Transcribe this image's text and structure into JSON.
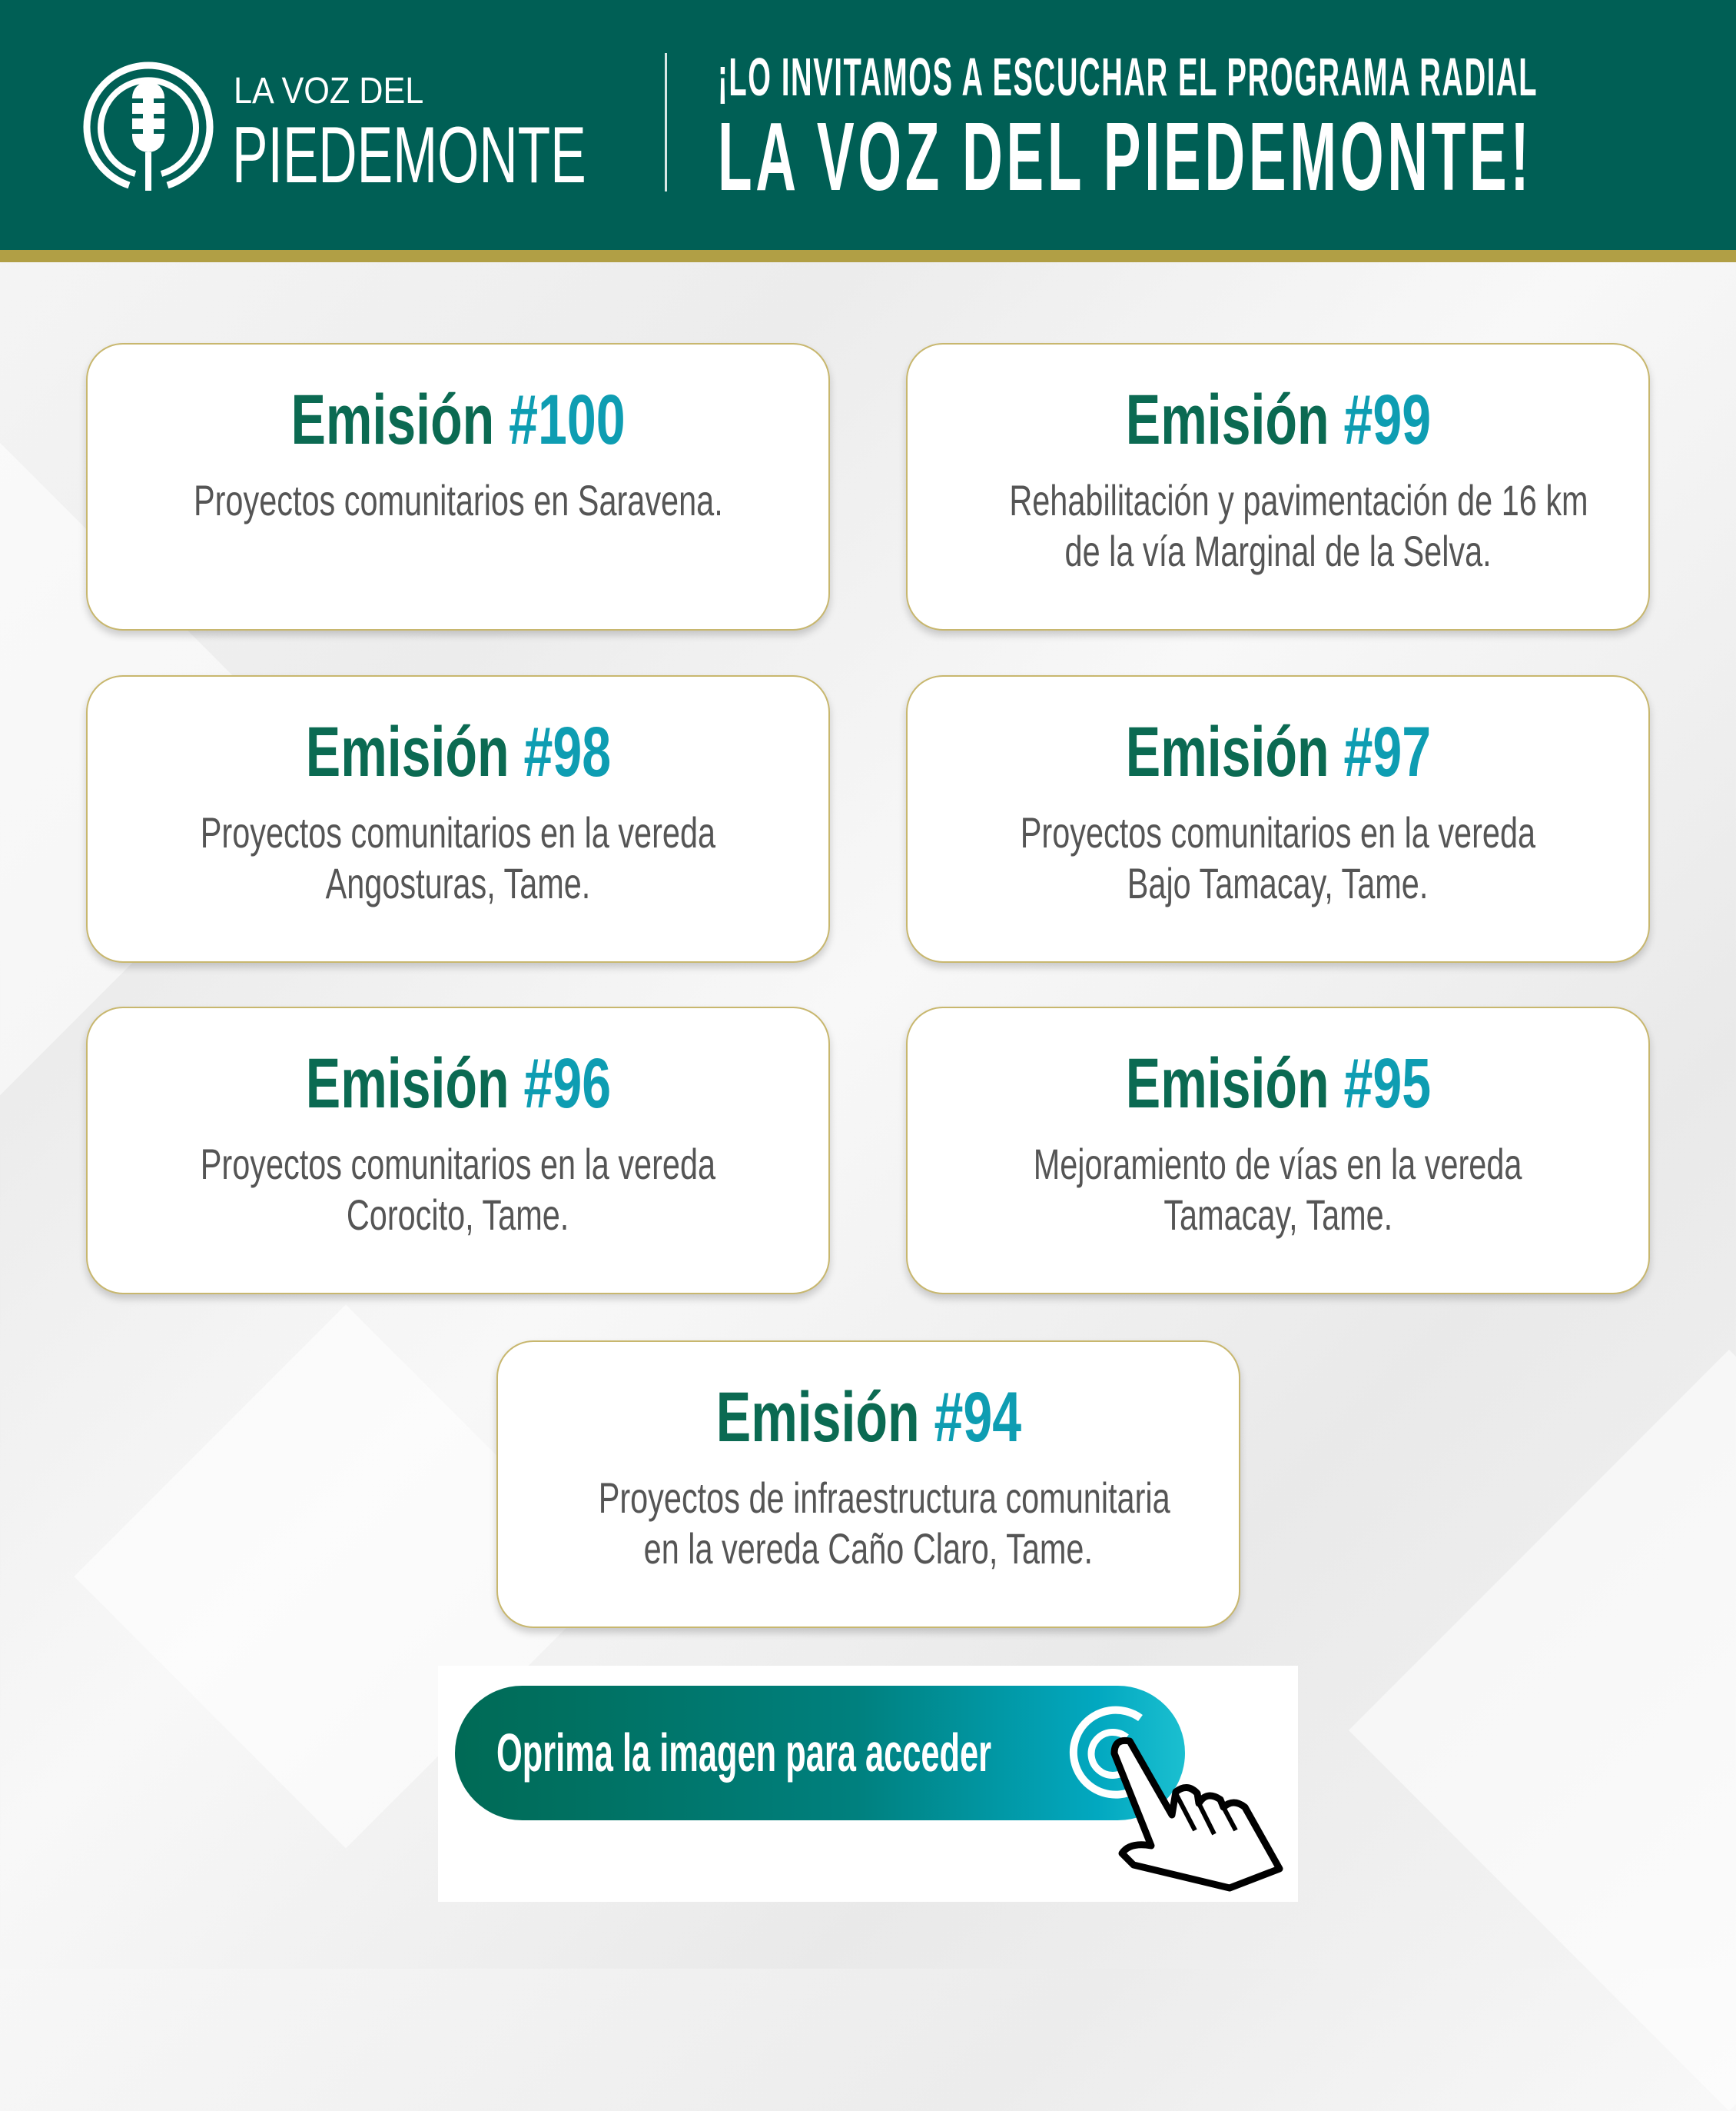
{
  "header": {
    "logo_top": "LA VOZ DEL",
    "logo_bottom": "PIEDEMONTE",
    "invite": "¡LO INVITAMOS A ESCUCHAR EL PROGRAMA RADIAL",
    "invite_main": "LA VOZ DEL PIEDEMONTE!"
  },
  "colors": {
    "header_green": "#005f55",
    "gold": "#b19f45",
    "title_green": "#0b6a52",
    "title_teal": "#0e9db2"
  },
  "episodes": [
    {
      "label": "Emisión",
      "number": "#100",
      "desc": [
        "Proyectos comunitarios en Saravena.",
        ""
      ]
    },
    {
      "label": "Emisión",
      "number": "#99",
      "desc": [
        "Rehabilitación y pavimentación de 16 km",
        "de la vía Marginal de la Selva."
      ]
    },
    {
      "label": "Emisión",
      "number": "#98",
      "desc": [
        "Proyectos comunitarios en la vereda",
        "Angosturas, Tame."
      ]
    },
    {
      "label": "Emisión",
      "number": "#97",
      "desc": [
        "Proyectos comunitarios en la vereda",
        "Bajo Tamacay, Tame."
      ]
    },
    {
      "label": "Emisión",
      "number": "#96",
      "desc": [
        "Proyectos comunitarios en la vereda",
        "Corocito, Tame."
      ]
    },
    {
      "label": "Emisión",
      "number": "#95",
      "desc": [
        "Mejoramiento de vías en la vereda",
        "Tamacay, Tame."
      ]
    },
    {
      "label": "Emisión",
      "number": "#94",
      "desc": [
        "Proyectos de infraestructura comunitaria",
        "en la vereda Caño Claro, Tame."
      ]
    }
  ],
  "cta": {
    "label": "Oprima la imagen para acceder",
    "icons": [
      "target-icon",
      "pointing-hand-icon"
    ]
  }
}
